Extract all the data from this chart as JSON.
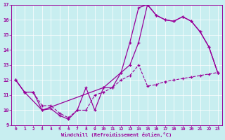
{
  "xlabel": "Windchill (Refroidissement éolien,°C)",
  "xlim": [
    -0.5,
    23.5
  ],
  "ylim": [
    9,
    17
  ],
  "xticks": [
    0,
    1,
    2,
    3,
    4,
    5,
    6,
    7,
    8,
    9,
    10,
    11,
    12,
    13,
    14,
    15,
    16,
    17,
    18,
    19,
    20,
    21,
    22,
    23
  ],
  "yticks": [
    9,
    10,
    11,
    12,
    13,
    14,
    15,
    16,
    17
  ],
  "bg_color": "#c8eef0",
  "line_color": "#990099",
  "line1_x": [
    0,
    1,
    2,
    3,
    4,
    5,
    6,
    7,
    8,
    9,
    10,
    11,
    12,
    13,
    14,
    15,
    16,
    17,
    18,
    19,
    20,
    21,
    22,
    23
  ],
  "line1_y": [
    12.0,
    11.2,
    11.2,
    10.0,
    10.1,
    9.65,
    9.4,
    10.0,
    11.5,
    10.0,
    11.5,
    11.5,
    12.5,
    13.0,
    14.5,
    17.0,
    16.3,
    16.0,
    15.9,
    16.2,
    15.9,
    15.2,
    14.2,
    12.5
  ],
  "line2_x": [
    0,
    1,
    3,
    10,
    12,
    13,
    14,
    15,
    16,
    17,
    18,
    19,
    20,
    21,
    22,
    23
  ],
  "line2_y": [
    12.0,
    11.2,
    10.0,
    11.5,
    12.5,
    14.5,
    16.8,
    17.0,
    16.3,
    16.0,
    15.9,
    16.2,
    15.9,
    15.2,
    14.2,
    12.5
  ],
  "line3_x": [
    0,
    1,
    2,
    3,
    4,
    5,
    6,
    7,
    8,
    9,
    10,
    11,
    12,
    13,
    14,
    15,
    16,
    17,
    18,
    19,
    20,
    21,
    22,
    23
  ],
  "line3_y": [
    12.0,
    11.2,
    11.2,
    10.3,
    10.3,
    9.8,
    9.5,
    10.0,
    10.0,
    11.0,
    11.2,
    11.5,
    12.0,
    12.3,
    13.0,
    11.6,
    11.7,
    11.9,
    12.0,
    12.1,
    12.2,
    12.3,
    12.4,
    12.5
  ]
}
